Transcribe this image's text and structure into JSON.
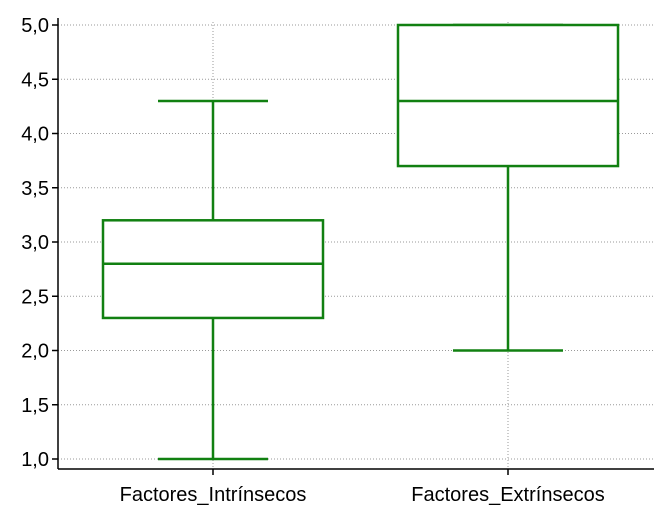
{
  "chart_data": {
    "type": "boxplot",
    "title": "",
    "xlabel": "",
    "ylabel": "",
    "ylim": [
      0.9,
      5.0
    ],
    "yticks": [
      1.0,
      1.5,
      2.0,
      2.5,
      3.0,
      3.5,
      4.0,
      4.5,
      5.0
    ],
    "ytick_labels": [
      "1,0",
      "1,5",
      "2,0",
      "2,5",
      "3,0",
      "3,5",
      "4,0",
      "4,5",
      "5,0"
    ],
    "grid": "dotted",
    "color": "#118011",
    "categories": [
      "Factores_Intrínsecos",
      "Factores_Extrínsecos"
    ],
    "boxes": [
      {
        "min": 1.0,
        "q1": 2.3,
        "median": 2.8,
        "q3": 3.2,
        "max": 4.3
      },
      {
        "min": 2.0,
        "q1": 3.7,
        "median": 4.3,
        "q3": 5.0,
        "max": 5.0
      }
    ]
  }
}
